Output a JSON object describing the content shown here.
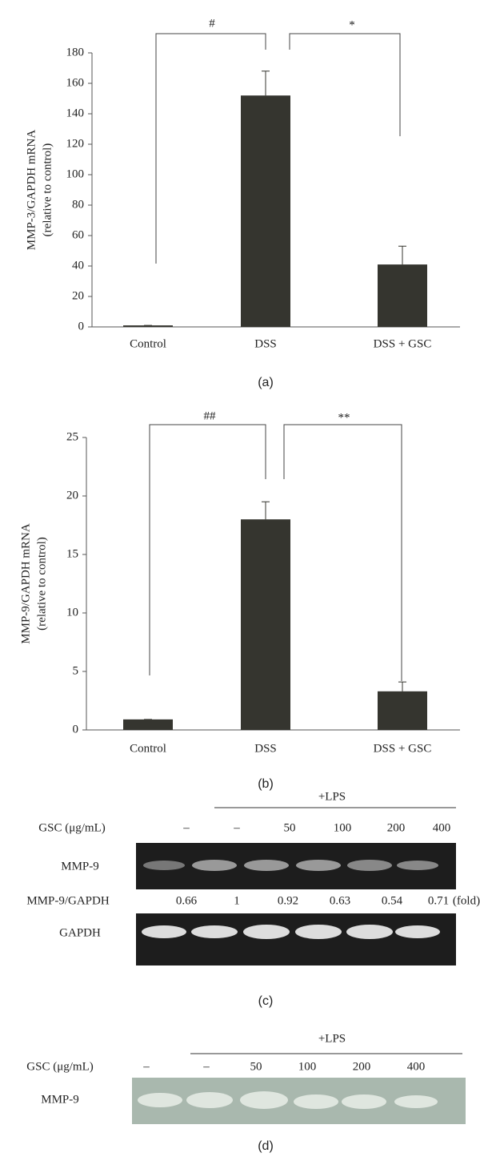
{
  "chart_data": [
    {
      "type": "bar",
      "panel": "(a)",
      "ylabel": [
        "MMP-3/GAPDH mRNA",
        "(relative to control)"
      ],
      "categories": [
        "Control",
        "DSS",
        "DSS + GSC"
      ],
      "values": [
        1,
        152,
        41
      ],
      "errors": [
        0,
        16,
        12
      ],
      "color": "#35352f",
      "ylim": [
        0,
        180
      ],
      "yticks": [
        0,
        20,
        40,
        60,
        80,
        100,
        120,
        140,
        160,
        180
      ],
      "annotations": [
        "#",
        "*"
      ]
    },
    {
      "type": "bar",
      "panel": "(b)",
      "ylabel": [
        "MMP-9/GAPDH mRNA",
        "(relative to control)"
      ],
      "categories": [
        "Control",
        "DSS",
        "DSS + GSC"
      ],
      "values": [
        0.9,
        18,
        3.3
      ],
      "errors": [
        0,
        1.5,
        0.8
      ],
      "color": "#35352f",
      "ylim": [
        0,
        25
      ],
      "yticks": [
        0,
        5,
        10,
        15,
        20,
        25
      ],
      "annotations": [
        "##",
        "**"
      ]
    }
  ],
  "panel_c": {
    "treatment": "+LPS",
    "dose_label": "GSC (μg/mL)",
    "doses": [
      "–",
      "–",
      "50",
      "100",
      "200",
      "400"
    ],
    "band_top": "MMP-9",
    "ratio_label": "MMP-9/GAPDH",
    "ratios": [
      "0.66",
      "1",
      "0.92",
      "0.63",
      "0.54",
      "0.71"
    ],
    "ratio_unit": "(fold)",
    "band_bottom": "GAPDH",
    "panel": "(c)"
  },
  "panel_d": {
    "treatment": "+LPS",
    "dose_label": "GSC (μg/mL)",
    "doses": [
      "–",
      "–",
      "50",
      "100",
      "200",
      "400"
    ],
    "band": "MMP-9",
    "panel": "(d)"
  }
}
